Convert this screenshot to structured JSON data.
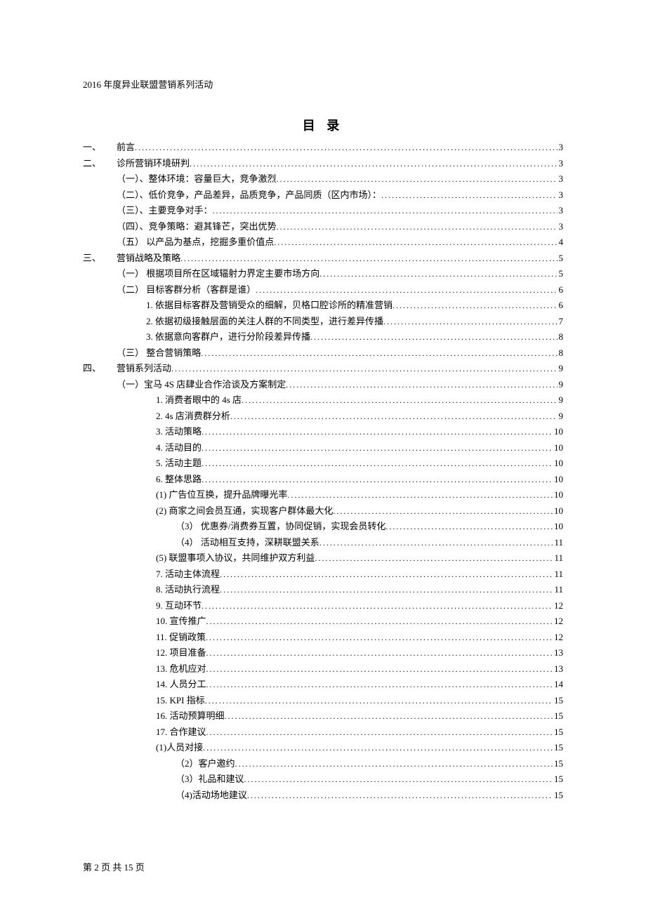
{
  "header": "2016 年度异业联盟营销系列活动",
  "title": "目 录",
  "footer": "第 2 页 共 15 页",
  "toc": [
    {
      "cls": "lvl0",
      "num": "一、",
      "text": "前言",
      "page": "3"
    },
    {
      "cls": "lvl0",
      "num": "二、",
      "text": "诊所营销环境研判",
      "page": "3"
    },
    {
      "cls": "lvl2",
      "num": "",
      "text": "（一）、整体环境：容量巨大，竞争激烈",
      "page": "3"
    },
    {
      "cls": "lvl2",
      "num": "",
      "text": "（二）、低价竞争，产品差异，品质竞争，产品同质（区内市场）：",
      "page": "3"
    },
    {
      "cls": "lvl2",
      "num": "",
      "text": "（三）、主要竞争对手：",
      "page": "3"
    },
    {
      "cls": "lvl2",
      "num": "",
      "text": "（四）、竞争策略：避其锋芒，突出优势",
      "page": "3"
    },
    {
      "cls": "lvl2",
      "num": "",
      "text": "（五） 以产品为基点，挖掘多重价值点",
      "page": "4"
    },
    {
      "cls": "lvl0",
      "num": "三、",
      "text": "营销战略及策略",
      "page": "5"
    },
    {
      "cls": "lvl2",
      "num": "",
      "text": "（一） 根据项目所在区域辐射力界定主要市场方向",
      "page": "5"
    },
    {
      "cls": "lvl2",
      "num": "",
      "text": "（二） 目标客群分析（客群是谁）",
      "page": "6"
    },
    {
      "cls": "lvl3",
      "num": "",
      "text": "1. 依据目标客群及营销受众的细解，贝格口腔诊所的精准营销",
      "page": "6"
    },
    {
      "cls": "lvl3",
      "num": "",
      "text": "2. 依据初级接触层面的关注人群的不同类型，进行差异传播",
      "page": "7"
    },
    {
      "cls": "lvl3",
      "num": "",
      "text": "3. 依据意向客群户，进行分阶段差异传播",
      "page": "8"
    },
    {
      "cls": "lvl2",
      "num": "",
      "text": "（三） 整合营销策略",
      "page": "8"
    },
    {
      "cls": "lvl0",
      "num": "四、",
      "text": "营销系列活动",
      "page": "9"
    },
    {
      "cls": "lvl2",
      "num": "",
      "text": "（一）宝马 4S 店肆业合作洽谈及方案制定",
      "page": "9"
    },
    {
      "cls": "lvl3b",
      "num": "1.",
      "text": "消费者眼中的 4s 店",
      "page": "9"
    },
    {
      "cls": "lvl3b",
      "num": "2.",
      "text": "4s 店消费群分析",
      "page": "9"
    },
    {
      "cls": "lvl3b",
      "num": "3.",
      "text": "活动策略",
      "page": "10"
    },
    {
      "cls": "lvl3b",
      "num": "4.",
      "text": "活动目的",
      "page": "10"
    },
    {
      "cls": "lvl3b",
      "num": "5.",
      "text": "活动主题",
      "page": "10"
    },
    {
      "cls": "lvl3b",
      "num": "6.",
      "text": "整体思路",
      "page": "10"
    },
    {
      "cls": "lvl4",
      "num": "",
      "text": "(1) 广告位互换，提升品牌曝光率",
      "page": "10"
    },
    {
      "cls": "lvl4",
      "num": "",
      "text": "(2) 商家之间会员互通，实现客户群体最大化",
      "page": "10"
    },
    {
      "cls": "lvl4b",
      "num": "",
      "text": "（3） 优惠券/消费券互置，协同促销，实现会员转化",
      "page": "10"
    },
    {
      "cls": "lvl4b",
      "num": "",
      "text": "（4） 活动相互支持，深耕联盟关系",
      "page": "11"
    },
    {
      "cls": "lvl4",
      "num": "",
      "text": "(5) 联盟事项入协议，共同维护双方利益",
      "page": "11"
    },
    {
      "cls": "lvl3b",
      "num": "7.",
      "text": "活动主体流程",
      "page": "11"
    },
    {
      "cls": "lvl3b",
      "num": "8.",
      "text": "活动执行流程",
      "page": "11"
    },
    {
      "cls": "lvl3b",
      "num": "9.",
      "text": "互动环节",
      "page": "12"
    },
    {
      "cls": "lvl3b",
      "num": "10.",
      "text": "宣传推广",
      "page": "12"
    },
    {
      "cls": "lvl3b",
      "num": "11.",
      "text": "促销政策",
      "page": "12"
    },
    {
      "cls": "lvl3b",
      "num": "12.",
      "text": "项目准备",
      "page": "13"
    },
    {
      "cls": "lvl3b",
      "num": "13.",
      "text": "危机应对",
      "page": "13"
    },
    {
      "cls": "lvl3b",
      "num": "14.",
      "text": "人员分工",
      "page": "14"
    },
    {
      "cls": "lvl3b",
      "num": "15.",
      "text": "KPI 指标",
      "page": "15"
    },
    {
      "cls": "lvl3b",
      "num": "16.",
      "text": "活动预算明细",
      "page": "15"
    },
    {
      "cls": "lvl3b",
      "num": "17.",
      "text": "合作建议",
      "page": "15"
    },
    {
      "cls": "lvl4",
      "num": "",
      "text": "(1)人员对接",
      "page": "15"
    },
    {
      "cls": "lvl4b",
      "num": "",
      "text": "（2）客户邀约",
      "page": "15"
    },
    {
      "cls": "lvl4b",
      "num": "",
      "text": "（3）礼品和建议",
      "page": "15"
    },
    {
      "cls": "lvl4b",
      "num": "",
      "text": "（4)活动场地建议",
      "page": "15"
    }
  ]
}
